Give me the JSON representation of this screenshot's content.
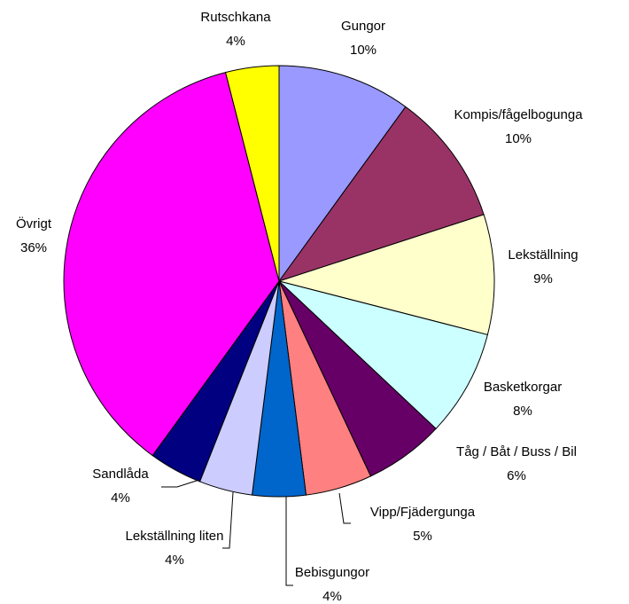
{
  "chart_data": {
    "type": "pie",
    "categories": [
      "Gungor",
      "Kompis/fågelbogunga",
      "Lekställning",
      "Basketkorgar",
      "Tåg / Båt / Buss / Bil",
      "Vipp/Fjädergunga",
      "Bebisgungor",
      "Lekställning liten",
      "Sandlåda",
      "Övrigt",
      "Rutschkana"
    ],
    "values": [
      10,
      10,
      9,
      8,
      6,
      5,
      4,
      4,
      4,
      36,
      4
    ],
    "value_labels": [
      "10%",
      "10%",
      "9%",
      "8%",
      "6%",
      "5%",
      "4%",
      "4%",
      "4%",
      "36%",
      "4%"
    ],
    "colors": [
      "#9999ff",
      "#993366",
      "#ffffcc",
      "#ccffff",
      "#660066",
      "#ff8080",
      "#0066cc",
      "#ccccff",
      "#000080",
      "#ff00ff",
      "#ffff00"
    ]
  }
}
